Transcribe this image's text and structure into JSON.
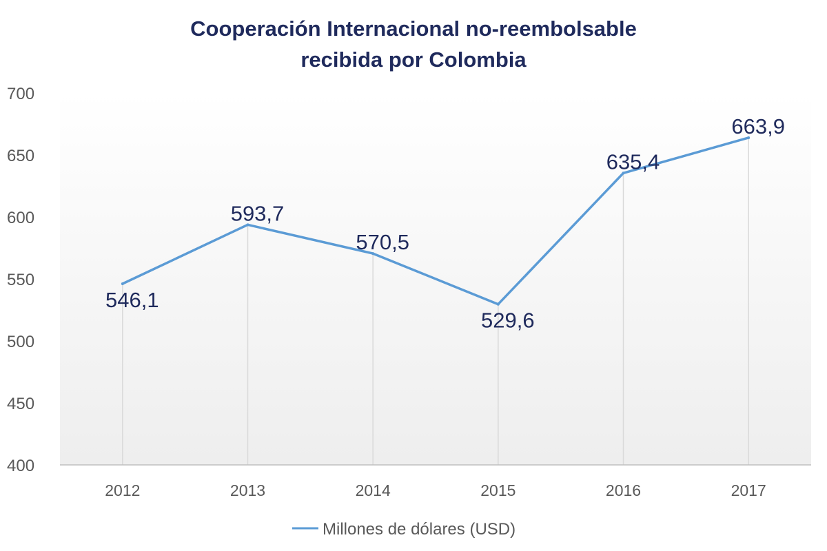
{
  "chart_data": {
    "type": "line",
    "title": [
      "Cooperación Internacional no-reembolsable",
      "recibida por Colombia"
    ],
    "categories": [
      "2012",
      "2013",
      "2014",
      "2015",
      "2016",
      "2017"
    ],
    "series": [
      {
        "name": "Millones de dólares (USD)",
        "values": [
          546.1,
          593.7,
          570.5,
          529.6,
          635.4,
          663.9
        ],
        "labels": [
          "546,1",
          "593,7",
          "570,5",
          "529,6",
          "635,4",
          "663,9"
        ]
      }
    ],
    "y_ticks": [
      "400",
      "450",
      "500",
      "550",
      "600",
      "650",
      "700"
    ],
    "ylim": [
      400,
      700
    ],
    "grid": "vertical",
    "legend_position": "bottom",
    "colors": {
      "line": "#5b9bd5",
      "title": "#1f2a5c",
      "data_label": "#1f2a5c",
      "axis_text": "#595959",
      "gridline": "#d9d9d9"
    }
  }
}
